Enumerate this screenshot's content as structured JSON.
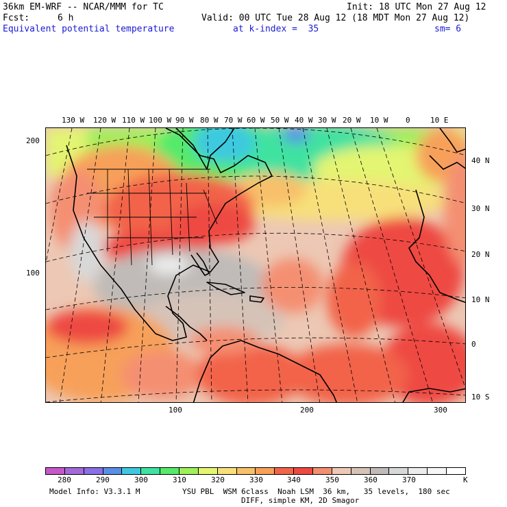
{
  "header": {
    "model_title": "36km EM-WRF -- NCAR/MMM for TC",
    "init": "Init: 18 UTC Mon 27 Aug 12",
    "fcst_label": "Fcst:",
    "fcst_value": "6 h",
    "valid": "Valid: 00 UTC Tue 28 Aug 12 (18 MDT Mon 27 Aug 12)",
    "field_name": "Equivalent potential temperature",
    "k_index": "at k-index =  35",
    "smoothing": "sm= 6"
  },
  "map": {
    "top_longitude_labels": [
      "130 W",
      "120 W",
      "110 W",
      "100 W",
      "90 W",
      "80 W",
      "70 W",
      "60 W",
      "50 W",
      "40 W",
      "30 W",
      "20 W",
      "10 W",
      "0",
      "10 E"
    ],
    "right_latitude_labels": [
      "40 N",
      "30 N",
      "20 N",
      "10 N",
      "0",
      "10 S"
    ],
    "left_grid_labels": [
      "200",
      "100"
    ],
    "bottom_grid_labels": [
      "100",
      "200",
      "300"
    ],
    "coastline_color": "#000000",
    "graticule_style": "dashed"
  },
  "colorbar": {
    "colors": [
      "#c659c9",
      "#a36ad9",
      "#8a6fe6",
      "#5a8fe8",
      "#3ec9e0",
      "#3fe2a0",
      "#55ea6a",
      "#9ef05a",
      "#e3f572",
      "#f7e07a",
      "#f8c06a",
      "#f7a05a",
      "#f2644a",
      "#ee4a42",
      "#f48f72",
      "#edc8b4",
      "#d6c3b8",
      "#c0bbb8",
      "#d8d8d8",
      "#ececec",
      "#f6f6f6",
      "#ffffff"
    ],
    "labels": [
      "280",
      "290",
      "300",
      "310",
      "320",
      "330",
      "340",
      "350",
      "360",
      "370"
    ],
    "unit": "K"
  },
  "footer": {
    "model_info": "Model Info: V3.3.1 M",
    "physics": "YSU PBL  WSM 6class  Noah LSM  36 km,   35 levels,  180 sec",
    "diffusion": "DIFF, simple KM, 2D Smagor"
  }
}
